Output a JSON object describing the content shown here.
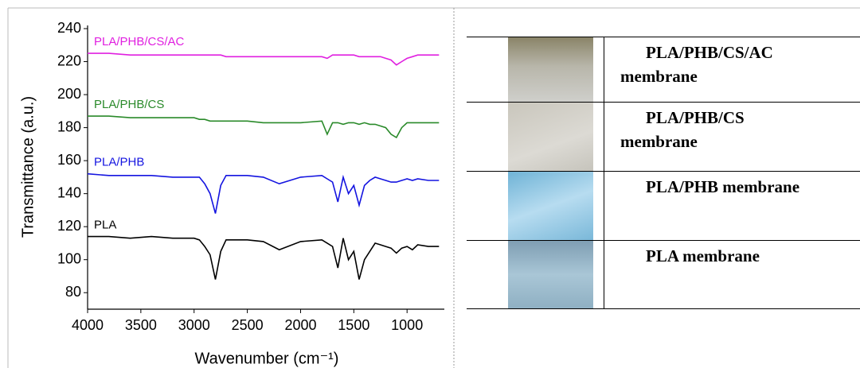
{
  "chart_data": {
    "type": "line",
    "x_label": "Wavenumber (cm⁻¹)",
    "y_label": "Transmittance (a.u.)",
    "xlim": [
      4000,
      650
    ],
    "ylim": [
      70,
      240
    ],
    "xticks": [
      4000,
      3500,
      3000,
      2500,
      2000,
      1500,
      1000
    ],
    "yticks": [
      80,
      100,
      120,
      140,
      160,
      180,
      200,
      220,
      240
    ],
    "x": [
      4000,
      3800,
      3600,
      3400,
      3200,
      3000,
      2950,
      2900,
      2850,
      2800,
      2750,
      2700,
      2500,
      2350,
      2200,
      2000,
      1800,
      1750,
      1700,
      1650,
      1600,
      1550,
      1500,
      1450,
      1400,
      1350,
      1300,
      1250,
      1200,
      1150,
      1100,
      1050,
      1000,
      950,
      900,
      800,
      700
    ],
    "series": [
      {
        "name": "PLA",
        "color": "#000000",
        "values": [
          114,
          114,
          113,
          114,
          113,
          113,
          112,
          108,
          103,
          88,
          105,
          112,
          112,
          111,
          106,
          111,
          112,
          110,
          108,
          95,
          113,
          100,
          105,
          88,
          100,
          105,
          110,
          109,
          108,
          107,
          104,
          107,
          108,
          106,
          109,
          108,
          108
        ]
      },
      {
        "name": "PLA/PHB",
        "color": "#1414e0",
        "values": [
          152,
          151,
          151,
          151,
          150,
          150,
          150,
          146,
          140,
          128,
          145,
          151,
          151,
          150,
          146,
          150,
          151,
          149,
          147,
          135,
          150,
          140,
          145,
          133,
          145,
          148,
          150,
          149,
          148,
          147,
          147,
          148,
          149,
          148,
          149,
          148,
          148
        ]
      },
      {
        "name": "PLA/PHB/CS",
        "color": "#2a8a2a",
        "values": [
          187,
          187,
          186,
          186,
          186,
          186,
          185,
          185,
          184,
          184,
          184,
          184,
          184,
          183,
          183,
          183,
          184,
          176,
          183,
          183,
          182,
          183,
          183,
          182,
          183,
          182,
          182,
          181,
          180,
          176,
          174,
          180,
          183,
          183,
          183,
          183,
          183
        ]
      },
      {
        "name": "PLA/PHB/CS/AC",
        "color": "#e020e0",
        "values": [
          225,
          225,
          224,
          224,
          224,
          224,
          224,
          224,
          224,
          224,
          224,
          223,
          223,
          223,
          223,
          223,
          223,
          222,
          224,
          224,
          224,
          224,
          224,
          223,
          223,
          223,
          223,
          223,
          222,
          221,
          218,
          220,
          222,
          223,
          224,
          224,
          224
        ]
      }
    ]
  },
  "table": {
    "rows": [
      [
        "PLA/PHB/CS/AC",
        "membrane"
      ],
      [
        "PLA/PHB/CS",
        "membrane"
      ],
      [
        "PLA/PHB membrane"
      ],
      [
        "PLA membrane"
      ]
    ]
  }
}
